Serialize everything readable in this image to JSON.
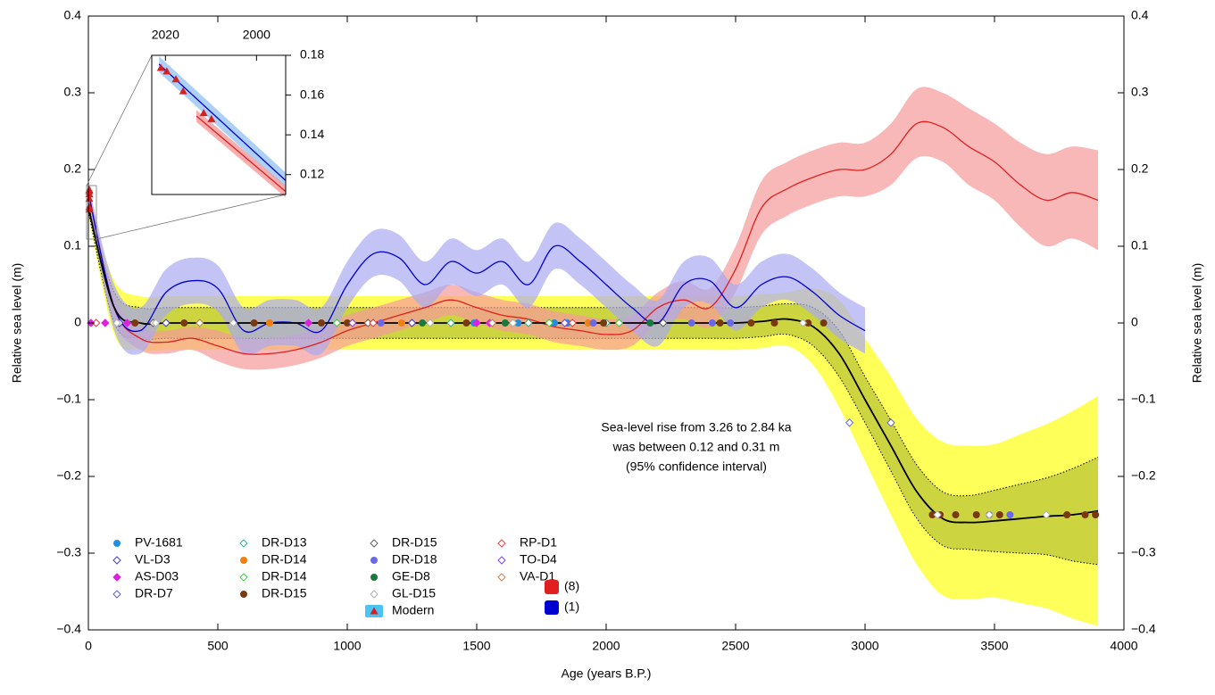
{
  "chart_data": {
    "type": "line",
    "x_label": "Age (years B.P.)",
    "y_label": "Relative sea level (m)",
    "y2_label": "Relative sea level (m)",
    "xlim": [
      0,
      4000
    ],
    "xticks": [
      0,
      500,
      1000,
      1500,
      2000,
      2500,
      3000,
      3500,
      4000
    ],
    "ylim": [
      -0.4,
      0.4
    ],
    "yticks": [
      {
        "value": -0.4,
        "label": "−0.4"
      },
      {
        "value": -0.3,
        "label": "−0.3"
      },
      {
        "value": -0.2,
        "label": "−0.2"
      },
      {
        "value": -0.1,
        "label": "−0.1"
      },
      0,
      0.1,
      0.2,
      0.3,
      0.4
    ],
    "annotation": [
      "Sea-level rise from 3.26 to 2.84 ka",
      "was between 0.12 and 0.31 m",
      "(95% confidence interval)"
    ],
    "curves": [
      {
        "name": "(8)",
        "color": "#e02020",
        "x": [
          0,
          100,
          200,
          300,
          400,
          500,
          600,
          700,
          800,
          900,
          1000,
          1100,
          1200,
          1300,
          1400,
          1500,
          1600,
          1700,
          1800,
          1900,
          2000,
          2100,
          2200,
          2300,
          2400,
          2500,
          2600,
          2700,
          2800,
          2900,
          3000,
          3100,
          3200,
          3300,
          3400,
          3500,
          3600,
          3700,
          3800,
          3900
        ],
        "values": [
          0.17,
          0.02,
          -0.02,
          -0.025,
          -0.02,
          -0.03,
          -0.04,
          -0.04,
          -0.035,
          -0.025,
          -0.01,
          0.0,
          0.01,
          0.02,
          0.03,
          0.02,
          0.01,
          0.005,
          -0.005,
          -0.01,
          -0.015,
          -0.01,
          0.02,
          0.03,
          0.02,
          0.07,
          0.15,
          0.175,
          0.19,
          0.2,
          0.2,
          0.22,
          0.26,
          0.255,
          0.23,
          0.21,
          0.18,
          0.16,
          0.17,
          0.16
        ],
        "bands": [
          {
            "color": "#f59a9a",
            "err": [
              0.01,
              0.015,
              0.015,
              0.015,
              0.015,
              0.02,
              0.02,
              0.02,
              0.02,
              0.02,
              0.02,
              0.02,
              0.02,
              0.02,
              0.02,
              0.02,
              0.02,
              0.02,
              0.02,
              0.02,
              0.02,
              0.02,
              0.02,
              0.025,
              0.025,
              0.03,
              0.035,
              0.035,
              0.035,
              0.035,
              0.035,
              0.04,
              0.045,
              0.045,
              0.05,
              0.05,
              0.055,
              0.06,
              0.06,
              0.065
            ]
          }
        ]
      },
      {
        "name": "(1)",
        "color": "#0000d0",
        "x": [
          0,
          100,
          200,
          300,
          400,
          500,
          600,
          700,
          800,
          900,
          1000,
          1100,
          1200,
          1300,
          1400,
          1500,
          1600,
          1700,
          1800,
          1900,
          2000,
          2100,
          2200,
          2300,
          2400,
          2500,
          2600,
          2700,
          2800,
          2900,
          3000
        ],
        "values": [
          0.17,
          0.02,
          -0.01,
          0.04,
          0.055,
          0.045,
          -0.01,
          0.0,
          0.0,
          -0.01,
          0.05,
          0.09,
          0.085,
          0.05,
          0.08,
          0.065,
          0.08,
          0.05,
          0.1,
          0.08,
          0.05,
          0.02,
          0.0,
          0.05,
          0.055,
          0.02,
          0.05,
          0.06,
          0.04,
          0.01,
          -0.01
        ],
        "bands": [
          {
            "color": "#a9a9f2",
            "err": [
              0.01,
              0.03,
              0.03,
              0.03,
              0.03,
              0.03,
              0.03,
              0.03,
              0.03,
              0.03,
              0.03,
              0.03,
              0.03,
              0.03,
              0.03,
              0.03,
              0.03,
              0.03,
              0.03,
              0.03,
              0.03,
              0.03,
              0.03,
              0.03,
              0.03,
              0.03,
              0.03,
              0.03,
              0.03,
              0.03,
              0.03
            ]
          }
        ]
      },
      {
        "color": "#000000",
        "x": [
          0,
          100,
          200,
          300,
          400,
          500,
          600,
          700,
          800,
          900,
          1000,
          1100,
          1200,
          1300,
          1400,
          1500,
          1600,
          1700,
          1800,
          1900,
          2000,
          2100,
          2200,
          2300,
          2400,
          2500,
          2600,
          2700,
          2800,
          2900,
          3000,
          3100,
          3200,
          3300,
          3400,
          3500,
          3600,
          3700,
          3800,
          3900
        ],
        "values": [
          0.15,
          0.02,
          0,
          0,
          0,
          0,
          0,
          0,
          0,
          0,
          0,
          0,
          0,
          0,
          0,
          0,
          0,
          0,
          0,
          0,
          0,
          0,
          0,
          0,
          0,
          0,
          0.002,
          0.005,
          -0.005,
          -0.04,
          -0.1,
          -0.16,
          -0.22,
          -0.255,
          -0.26,
          -0.258,
          -0.255,
          -0.252,
          -0.25,
          -0.245
        ],
        "bands": [
          {
            "color": "#ffff5a",
            "err": [
              0.01,
              0.035,
              0.035,
              0.035,
              0.035,
              0.035,
              0.035,
              0.035,
              0.035,
              0.035,
              0.035,
              0.035,
              0.035,
              0.035,
              0.035,
              0.035,
              0.035,
              0.035,
              0.035,
              0.035,
              0.035,
              0.035,
              0.035,
              0.035,
              0.035,
              0.035,
              0.035,
              0.035,
              0.05,
              0.07,
              0.08,
              0.09,
              0.095,
              0.1,
              0.1,
              0.1,
              0.11,
              0.12,
              0.135,
              0.15
            ]
          },
          {
            "color": "#c3cc3c",
            "dotted": true,
            "err": [
              0.005,
              0.02,
              0.02,
              0.02,
              0.02,
              0.02,
              0.02,
              0.02,
              0.02,
              0.02,
              0.02,
              0.02,
              0.02,
              0.02,
              0.02,
              0.02,
              0.02,
              0.02,
              0.02,
              0.02,
              0.02,
              0.02,
              0.02,
              0.02,
              0.02,
              0.02,
              0.02,
              0.02,
              0.025,
              0.03,
              0.03,
              0.033,
              0.035,
              0.035,
              0.035,
              0.04,
              0.045,
              0.05,
              0.06,
              0.07
            ]
          }
        ]
      }
    ],
    "point_series": [
      {
        "name": "PV-1681",
        "color": "#1f8fe0",
        "marker": "circle",
        "filled": true,
        "x": [
          1490,
          1660,
          1800,
          1850
        ],
        "values": [
          0,
          0,
          0,
          0
        ]
      },
      {
        "name": "VL-D3",
        "color": "#4040c0",
        "marker": "diamond",
        "filled": false,
        "x": [
          120,
          300,
          1250
        ],
        "values": [
          0,
          0,
          0
        ]
      },
      {
        "name": "AS-D03",
        "color": "#e020e0",
        "marker": "diamond",
        "filled": true,
        "x": [
          10,
          65,
          150,
          850,
          1500,
          1550
        ],
        "values": [
          0,
          0,
          0,
          0,
          0,
          0
        ]
      },
      {
        "name": "DR-D7",
        "color": "#6060d0",
        "marker": "diamond",
        "filled": false,
        "x": [
          2940,
          3100
        ],
        "values": [
          -0.13,
          -0.13
        ]
      },
      {
        "name": "DR-D13",
        "color": "#30b0a0",
        "marker": "diamond",
        "filled": false,
        "x": [
          1400,
          1700,
          2000
        ],
        "values": [
          0,
          0,
          0
        ]
      },
      {
        "name": "DR-D14",
        "color": "#f08010",
        "marker": "circle",
        "filled": true,
        "x": [
          700,
          1210,
          1930
        ],
        "values": [
          0,
          0,
          0
        ]
      },
      {
        "name": "DR-D14",
        "color": "#40d040",
        "marker": "diamond",
        "filled": false,
        "x": [
          960,
          1780,
          2050
        ],
        "values": [
          0,
          0,
          0
        ]
      },
      {
        "name": "DR-D15",
        "color": "#7a3a10",
        "marker": "circle",
        "filled": true,
        "x": [
          180,
          370,
          640,
          900,
          1000,
          1460,
          1990,
          2440,
          2560,
          2650,
          2780,
          2840,
          3260,
          3290,
          3350,
          3430,
          3520,
          3780,
          3850,
          3890
        ],
        "values": [
          0,
          0,
          0,
          0,
          0,
          0,
          0,
          0,
          0,
          0,
          0,
          0,
          -0.25,
          -0.25,
          -0.25,
          -0.25,
          -0.25,
          -0.25,
          -0.25,
          -0.25
        ]
      },
      {
        "name": "DR-D15",
        "color": "#606060",
        "marker": "diamond",
        "filled": false,
        "x": [
          250,
          1080,
          2220
        ],
        "values": [
          0,
          0,
          0
        ]
      },
      {
        "name": "DR-D18",
        "color": "#6a6ae8",
        "marker": "circle",
        "filled": true,
        "x": [
          1130,
          1950,
          2330,
          2410,
          2480,
          3480,
          3560
        ],
        "values": [
          0,
          0,
          0,
          0,
          0,
          -0.25,
          -0.25
        ]
      },
      {
        "name": "GE-D8",
        "color": "#1a7a3a",
        "marker": "circle",
        "filled": true,
        "x": [
          1290,
          1610,
          2170
        ],
        "values": [
          0,
          0,
          0
        ]
      },
      {
        "name": "GL-D15",
        "color": "#b0b0b0",
        "marker": "diamond",
        "filled": false,
        "x": [
          110,
          260,
          560,
          1320,
          1640,
          2760,
          3280,
          3480,
          3700
        ],
        "values": [
          0,
          0,
          0,
          0,
          0,
          0,
          -0.25,
          -0.25,
          -0.25
        ]
      },
      {
        "name": "RP-D1",
        "color": "#e04040",
        "marker": "diamond",
        "filled": false,
        "x": [
          30,
          1100,
          1870
        ],
        "values": [
          0,
          0,
          0
        ]
      },
      {
        "name": "TO-D4",
        "color": "#8040e0",
        "marker": "diamond",
        "filled": false,
        "x": [
          1020,
          1840
        ],
        "values": [
          0,
          0
        ]
      },
      {
        "name": "VA-D1",
        "color": "#c08050",
        "marker": "diamond",
        "filled": false,
        "x": [
          430,
          1560
        ],
        "values": [
          0,
          0
        ]
      }
    ],
    "modern": {
      "name": "Modern",
      "color": "#d42020",
      "band_color": "#4cc3f0",
      "x": [
        2021,
        2019.7,
        2017.7,
        2016.1,
        2011.6,
        2009.9
      ],
      "values": [
        0.1737,
        0.172,
        0.168,
        0.162,
        0.151,
        0.148
      ]
    },
    "inset": {
      "xlim": [
        2023,
        1993.6
      ],
      "xticks": [
        2020,
        2000
      ],
      "ylim": [
        0.11,
        0.18
      ],
      "yticks": [
        0.12,
        0.14,
        0.16,
        0.18
      ],
      "curves": [
        {
          "color": "#0000cc",
          "band_color": "#9fc8f5",
          "x": [
            2021.4,
            1993.6
          ],
          "values": [
            0.1755,
            0.117
          ],
          "err": [
            0.004,
            0.004
          ]
        },
        {
          "color": "#e02020",
          "band_color": "#f4a0a0",
          "x": [
            2013.2,
            1993.6
          ],
          "values": [
            0.1495,
            0.1115
          ],
          "err": [
            0.003,
            0.003
          ]
        }
      ]
    }
  }
}
